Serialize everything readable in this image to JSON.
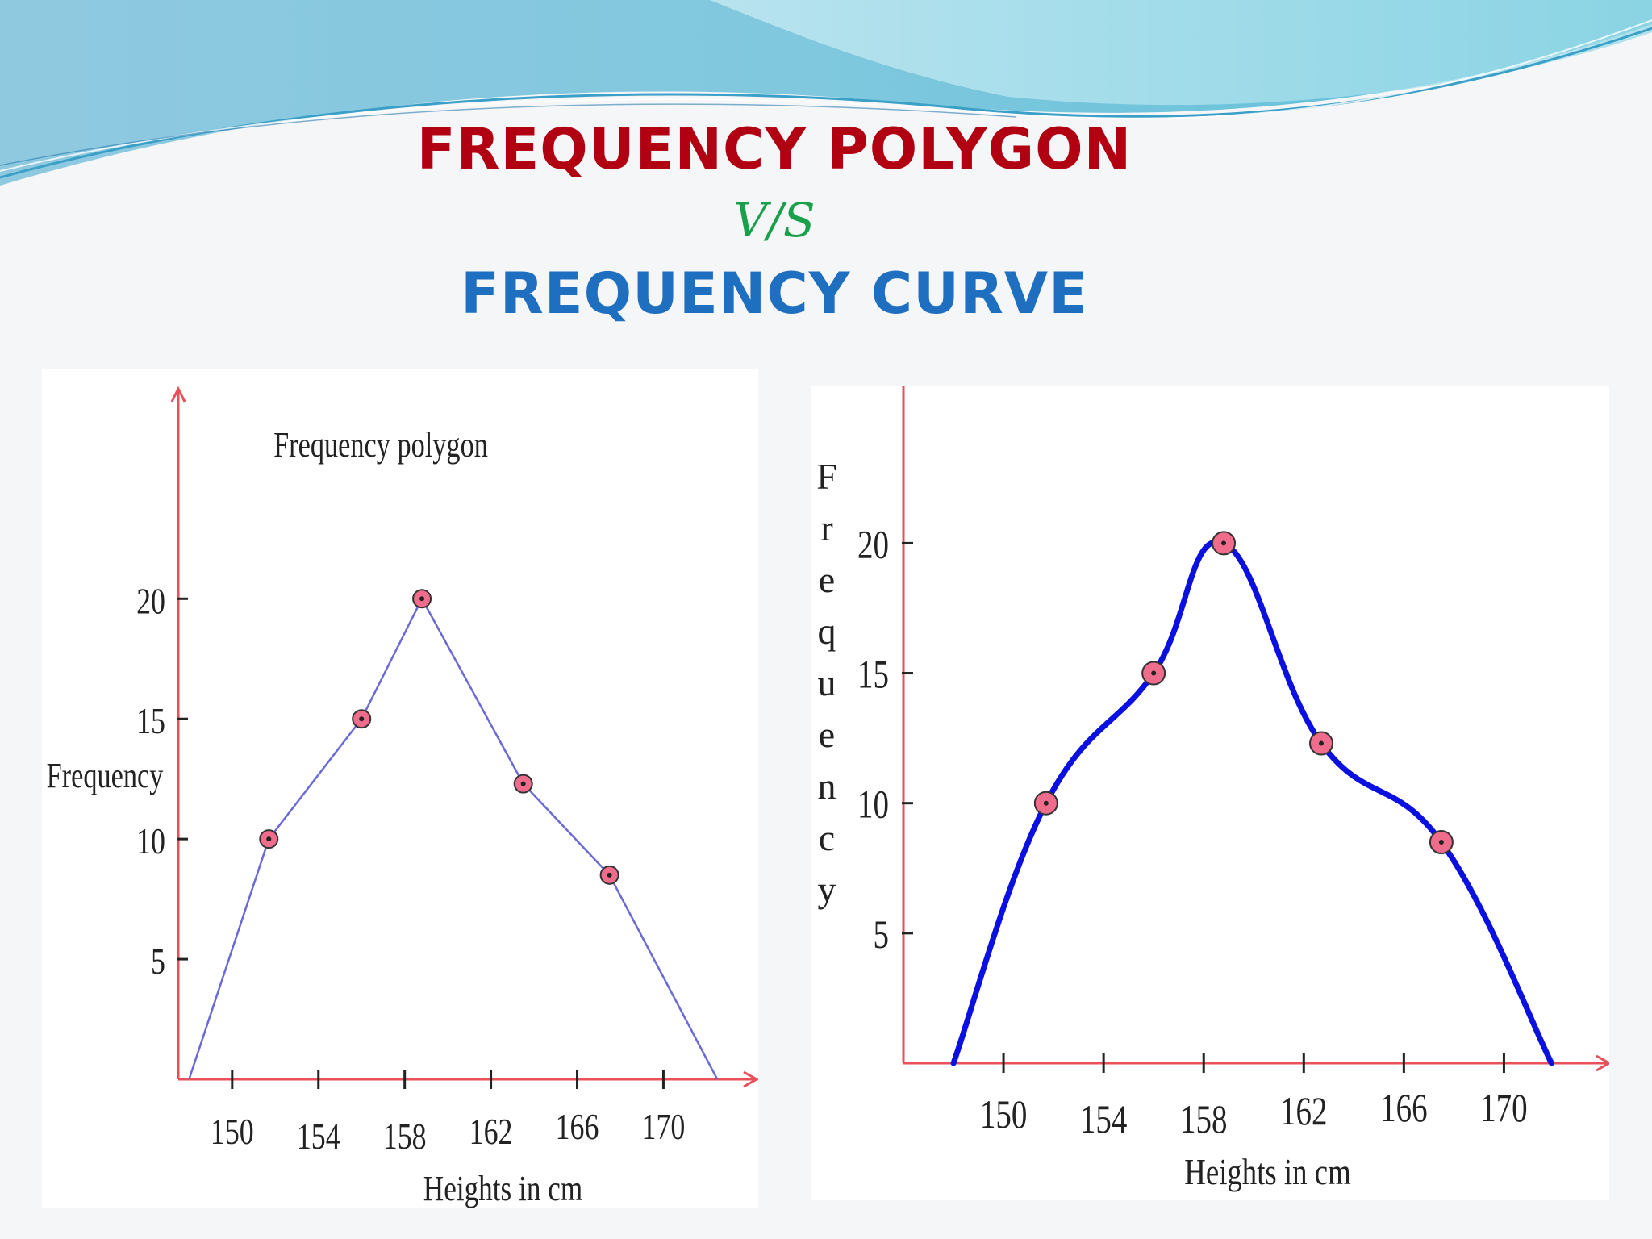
{
  "slide": {
    "title_line1": "FREQUENCY POLYGON",
    "title_line2": "V/S",
    "title_line3": "FREQUENCY CURVE",
    "colors": {
      "title_line1": "#b00012",
      "title_line2": "#1aa04a",
      "title_line3": "#1f6fc0",
      "axis": "#e8505a",
      "polygon_line": "#6a6ad6",
      "curve_line": "#0a10e0",
      "marker_fill": "#f06c8c"
    }
  },
  "chart_data": [
    {
      "type": "line",
      "title": "Frequency polygon",
      "xlabel": "Heights in cm",
      "ylabel": "Frequency",
      "x_ticks": [
        150,
        154,
        158,
        162,
        166,
        170
      ],
      "y_ticks": [
        5,
        10,
        15,
        20
      ],
      "y_tick_labels": [
        "5",
        "10",
        "15",
        "20"
      ],
      "xlim": [
        147.5,
        173.5
      ],
      "ylim": [
        0,
        28
      ],
      "grid": false,
      "series": [
        {
          "points": [
            {
              "x": 148,
              "y": 0
            },
            {
              "x": 151.7,
              "y": 10
            },
            {
              "x": 156,
              "y": 15
            },
            {
              "x": 158.8,
              "y": 20
            },
            {
              "x": 163.5,
              "y": 12.3
            },
            {
              "x": 167.5,
              "y": 8.5
            },
            {
              "x": 172.5,
              "y": 0
            }
          ],
          "markers": [
            1,
            2,
            3,
            4,
            5
          ]
        }
      ]
    },
    {
      "type": "line",
      "title": "",
      "xlabel": "Heights in cm",
      "ylabel": "Frequency",
      "x_ticks": [
        150,
        154,
        158,
        162,
        166,
        170
      ],
      "y_ticks": [
        5,
        10,
        15,
        20
      ],
      "y_tick_labels": [
        "5",
        "10",
        "15",
        "20"
      ],
      "xlim": [
        146,
        173.5
      ],
      "ylim": [
        0,
        26
      ],
      "grid": false,
      "smooth": true,
      "series": [
        {
          "points": [
            {
              "x": 148,
              "y": 0
            },
            {
              "x": 151.7,
              "y": 10
            },
            {
              "x": 156,
              "y": 15
            },
            {
              "x": 158.8,
              "y": 20
            },
            {
              "x": 162.7,
              "y": 12.3
            },
            {
              "x": 167.5,
              "y": 8.5
            },
            {
              "x": 171.9,
              "y": 0
            }
          ],
          "markers": [
            1,
            2,
            3,
            4,
            5
          ]
        }
      ]
    }
  ]
}
